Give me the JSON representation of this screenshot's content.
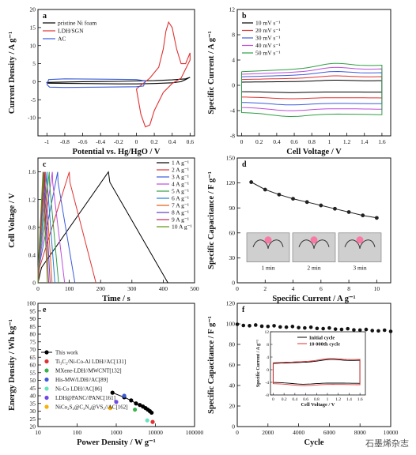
{
  "watermark": "石墨烯杂志",
  "chart_data": [
    {
      "panel": "a",
      "type": "line",
      "xlabel": "Potential vs. Hg/HgO / V",
      "ylabel": "Current Density / A g⁻¹",
      "xlim": [
        -1.1,
        0.65
      ],
      "ylim": [
        -15,
        20
      ],
      "xticks": [
        -1.0,
        -0.8,
        -0.6,
        -0.4,
        -0.2,
        0.0,
        0.2,
        0.4,
        0.6
      ],
      "yticks": [
        -10,
        -5,
        0,
        5,
        10,
        15,
        20
      ],
      "legend": "top-left",
      "series": [
        {
          "name": "pristine Ni foam",
          "color": "#000000",
          "x": [
            -1.0,
            -0.6,
            -0.2,
            0.0,
            0.2,
            0.4,
            0.5,
            0.55,
            0.58,
            0.6,
            0.55,
            0.4,
            0.2,
            0.0,
            -0.2,
            -0.6,
            -1.0,
            -1.0
          ],
          "y": [
            -0.4,
            -0.5,
            -0.6,
            -0.6,
            -0.5,
            -0.3,
            0.0,
            0.6,
            1.0,
            1.2,
            0.8,
            0.5,
            0.3,
            0.2,
            0.1,
            0.0,
            -0.2,
            -0.4
          ]
        },
        {
          "name": "LDH/SGN",
          "color": "#e03131",
          "x": [
            0.0,
            0.05,
            0.15,
            0.25,
            0.3,
            0.33,
            0.36,
            0.4,
            0.45,
            0.5,
            0.55,
            0.6,
            0.6,
            0.5,
            0.4,
            0.3,
            0.2,
            0.15,
            0.1,
            0.05,
            0.0
          ],
          "y": [
            -2,
            -1,
            1,
            4,
            9,
            14,
            16.5,
            15,
            9,
            5,
            5,
            8,
            6,
            1,
            -0.5,
            -3,
            -8,
            -12,
            -12.5,
            -9,
            -2
          ]
        },
        {
          "name": "AC",
          "color": "#3b5bdb",
          "x": [
            -1.0,
            -0.98,
            -0.8,
            -0.4,
            0.0,
            0.1,
            0.08,
            0.0,
            -0.4,
            -0.8,
            -0.97,
            -1.0
          ],
          "y": [
            -0.8,
            0.6,
            0.8,
            0.7,
            0.6,
            0.2,
            -1.2,
            -1.4,
            -1.5,
            -1.6,
            -1.5,
            -0.8
          ]
        }
      ]
    },
    {
      "panel": "b",
      "type": "line",
      "xlabel": "Cell Voltage / V",
      "ylabel": "Specific Current / A g⁻¹",
      "xlim": [
        -0.05,
        1.7
      ],
      "ylim": [
        -8,
        12
      ],
      "xticks": [
        0.0,
        0.2,
        0.4,
        0.6,
        0.8,
        1.0,
        1.2,
        1.4,
        1.6
      ],
      "yticks": [
        -8,
        -4,
        0,
        4,
        8,
        12
      ],
      "legend": "top-left",
      "series": [
        {
          "name": "10 mV s⁻¹",
          "color": "#000000",
          "amp": 1.0
        },
        {
          "name": "20 mV s⁻¹",
          "color": "#e03131",
          "amp": 1.85
        },
        {
          "name": "30 mV s⁻¹",
          "color": "#3b5bdb",
          "amp": 2.7
        },
        {
          "name": "40 mV s⁻¹",
          "color": "#be4bdb",
          "amp": 3.5
        },
        {
          "name": "50 mV s⁻¹",
          "color": "#2f9e44",
          "amp": 4.3
        }
      ]
    },
    {
      "panel": "c",
      "type": "line",
      "xlabel": "Time / s",
      "ylabel": "Cell Voltage / V",
      "xlim": [
        0,
        500
      ],
      "ylim": [
        0,
        1.8
      ],
      "xticks": [
        0,
        100,
        200,
        300,
        400,
        500
      ],
      "yticks": [
        0.0,
        0.4,
        0.8,
        1.2,
        1.6
      ],
      "legend": "top-right",
      "series": [
        {
          "name": "1 A g⁻¹",
          "color": "#000000",
          "peak": 225,
          "end": 415
        },
        {
          "name": "2 A g⁻¹",
          "color": "#e03131",
          "peak": 100,
          "end": 185
        },
        {
          "name": "3 A g⁻¹",
          "color": "#3b5bdb",
          "peak": 63,
          "end": 118
        },
        {
          "name": "4 A g⁻¹",
          "color": "#be4bdb",
          "peak": 46,
          "end": 85
        },
        {
          "name": "5 A g⁻¹",
          "color": "#2f9e44",
          "peak": 36,
          "end": 66
        },
        {
          "name": "6 A g⁻¹",
          "color": "#1c7ed6",
          "peak": 29,
          "end": 54
        },
        {
          "name": "7 A g⁻¹",
          "color": "#e8590c",
          "peak": 24,
          "end": 45
        },
        {
          "name": "8 A g⁻¹",
          "color": "#5f3dc4",
          "peak": 21,
          "end": 39
        },
        {
          "name": "9 A g⁻¹",
          "color": "#c2255c",
          "peak": 18,
          "end": 34
        },
        {
          "name": "10 A g⁻¹",
          "color": "#5c940d",
          "peak": 16,
          "end": 30
        }
      ]
    },
    {
      "panel": "d",
      "type": "line",
      "xlabel": "Specific Current / A g⁻¹",
      "ylabel": "Specific Capacitance / F g⁻¹",
      "xlim": [
        0,
        11
      ],
      "ylim": [
        0,
        150
      ],
      "xticks": [
        0,
        2,
        4,
        6,
        8,
        10
      ],
      "yticks": [
        0,
        30,
        60,
        90,
        120,
        150
      ],
      "series": [
        {
          "color": "#222222",
          "x": [
            1,
            2,
            3,
            4,
            5,
            6,
            7,
            8,
            9,
            10
          ],
          "y": [
            121,
            112,
            106,
            101,
            97,
            93,
            89,
            85,
            81,
            78
          ]
        }
      ],
      "inset_photos": [
        "1 min",
        "2 min",
        "3 min"
      ]
    },
    {
      "panel": "e",
      "type": "scatter",
      "xlabel": "Power Density / W g⁻¹",
      "ylabel": "Energy Density / Wh kg⁻¹",
      "xscale": "log",
      "xlim": [
        10,
        100000
      ],
      "xticks": [
        "10",
        "100",
        "1000",
        "10000",
        "100000"
      ],
      "yticks": [
        20,
        25,
        30,
        35,
        40,
        45,
        50,
        55,
        60,
        65,
        70,
        75,
        80,
        85,
        90,
        95,
        100
      ],
      "ylim": [
        20,
        100
      ],
      "legend": "bottom-left",
      "series": [
        {
          "name": "This work",
          "color": "#000000",
          "marker": "line-circle",
          "x": [
            800,
            1600,
            2400,
            3200,
            4000,
            4800,
            5600,
            6400,
            7200,
            8000
          ],
          "y": [
            42,
            39,
            37,
            35,
            34,
            33,
            32,
            31,
            30,
            29
          ]
        },
        {
          "name": "Ti₃C₂/Ni-Co-Al LDH//AC[131]",
          "color": "#e03131",
          "x": [
            8500
          ],
          "y": [
            23
          ]
        },
        {
          "name": "MXene-LDH//MWCNT[132]",
          "color": "#37b24d",
          "x": [
            3000
          ],
          "y": [
            31
          ]
        },
        {
          "name": "His-MW/LDH//AC[89]",
          "color": "#3b5bdb",
          "x": [
            1600
          ],
          "y": [
            40
          ]
        },
        {
          "name": "Ni-Co LDH//AC[86]",
          "color": "#63e6be",
          "x": [
            6200
          ],
          "y": [
            24
          ]
        },
        {
          "name": "LDH@PANC//PANC[161]",
          "color": "#7048e8",
          "x": [
            1000
          ],
          "y": [
            36
          ]
        },
        {
          "name": "NiCo₂S₄@C₃N₄@VS₂//AC[162]",
          "color": "#fab005",
          "x": [
            700
          ],
          "y": [
            32
          ]
        }
      ]
    },
    {
      "panel": "f",
      "type": "scatter",
      "xlabel": "Cycle",
      "ylabel": "Specific Capacitance / F g⁻¹",
      "xlim": [
        0,
        10000
      ],
      "ylim": [
        0,
        120
      ],
      "xticks": [
        0,
        2000,
        4000,
        6000,
        8000,
        10000
      ],
      "yticks": [
        0,
        20,
        40,
        60,
        80,
        100,
        120
      ],
      "series": [
        {
          "color": "#111111",
          "x_step": 400,
          "y_start": 99,
          "y_end": 93
        }
      ],
      "inset": {
        "xlabel": "Cell Voltage / V",
        "ylabel": "Specific Current / A g⁻¹",
        "xlim": [
          -0.05,
          1.7
        ],
        "ylim": [
          -8,
          12
        ],
        "xticks": [
          0.0,
          0.2,
          0.4,
          0.6,
          0.8,
          1.0,
          1.2,
          1.4,
          1.6
        ],
        "yticks": [
          -8,
          -4,
          0,
          4,
          8,
          12
        ],
        "series": [
          {
            "name": "Initial cycle",
            "color": "#000000"
          },
          {
            "name": "10 000th cycle",
            "color": "#e03131"
          }
        ]
      }
    }
  ]
}
